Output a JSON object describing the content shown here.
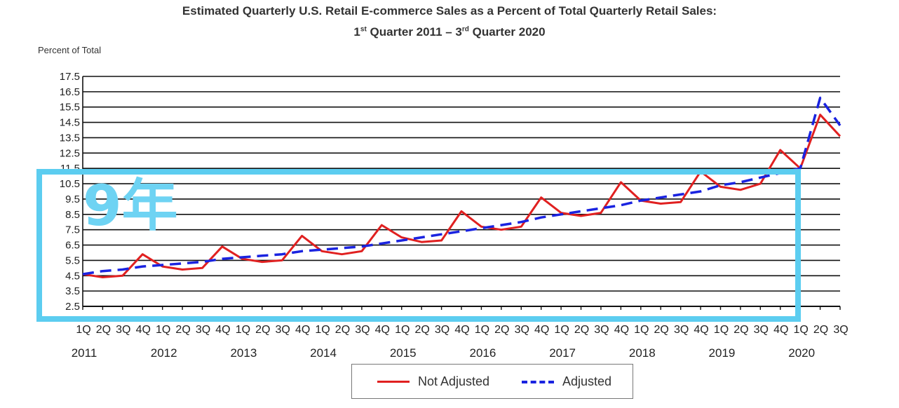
{
  "chart_data": {
    "type": "line",
    "title_line1": "Estimated Quarterly U.S. Retail E-commerce Sales as a Percent of Total Quarterly Retail Sales:",
    "title_line2_parts": [
      "1",
      "st",
      " Quarter 2011 – 3",
      "rd",
      " Quarter 2020"
    ],
    "ylabel": "Percent of Total",
    "ylim": [
      2.5,
      17.5
    ],
    "yticks": [
      "2.5",
      "3.5",
      "4.5",
      "5.5",
      "6.5",
      "7.5",
      "8.5",
      "9.5",
      "10.5",
      "11.5",
      "12.5",
      "13.5",
      "14.5",
      "15.5",
      "16.5",
      "17.5"
    ],
    "quarter_labels": [
      "1Q",
      "2Q",
      "3Q",
      "4Q",
      "1Q",
      "2Q",
      "3Q",
      "4Q",
      "1Q",
      "2Q",
      "3Q",
      "4Q",
      "1Q",
      "2Q",
      "3Q",
      "4Q",
      "1Q",
      "2Q",
      "3Q",
      "4Q",
      "1Q",
      "2Q",
      "3Q",
      "4Q",
      "1Q",
      "2Q",
      "3Q",
      "4Q",
      "1Q",
      "2Q",
      "3Q",
      "4Q",
      "1Q",
      "2Q",
      "3Q",
      "4Q",
      "1Q",
      "2Q",
      "3Q"
    ],
    "years": [
      "2011",
      "2012",
      "2013",
      "2014",
      "2015",
      "2016",
      "2017",
      "2018",
      "2019",
      "2020"
    ],
    "series": [
      {
        "name": "Not Adjusted",
        "color": "#e02020",
        "values": [
          4.6,
          4.4,
          4.5,
          5.9,
          5.1,
          4.9,
          5.0,
          6.4,
          5.6,
          5.4,
          5.5,
          7.1,
          6.1,
          5.9,
          6.1,
          7.8,
          7.0,
          6.7,
          6.8,
          8.7,
          7.7,
          7.5,
          7.7,
          9.6,
          8.6,
          8.4,
          8.6,
          10.6,
          9.4,
          9.2,
          9.3,
          11.3,
          10.3,
          10.1,
          10.5,
          12.7,
          11.5,
          15.0,
          13.6
        ]
      },
      {
        "name": "Adjusted",
        "color": "#1a23e0",
        "values": [
          4.6,
          4.8,
          4.9,
          5.1,
          5.2,
          5.3,
          5.4,
          5.6,
          5.7,
          5.8,
          5.9,
          6.1,
          6.2,
          6.3,
          6.4,
          6.6,
          6.8,
          7.0,
          7.2,
          7.4,
          7.6,
          7.8,
          8.0,
          8.3,
          8.5,
          8.7,
          8.9,
          9.1,
          9.4,
          9.6,
          9.8,
          10.0,
          10.4,
          10.6,
          10.9,
          11.2,
          11.5,
          16.1,
          14.3
        ]
      }
    ],
    "legend_position": "bottom",
    "grid": true
  },
  "overlay": {
    "text": "9年",
    "color": "#5ccdf0"
  }
}
